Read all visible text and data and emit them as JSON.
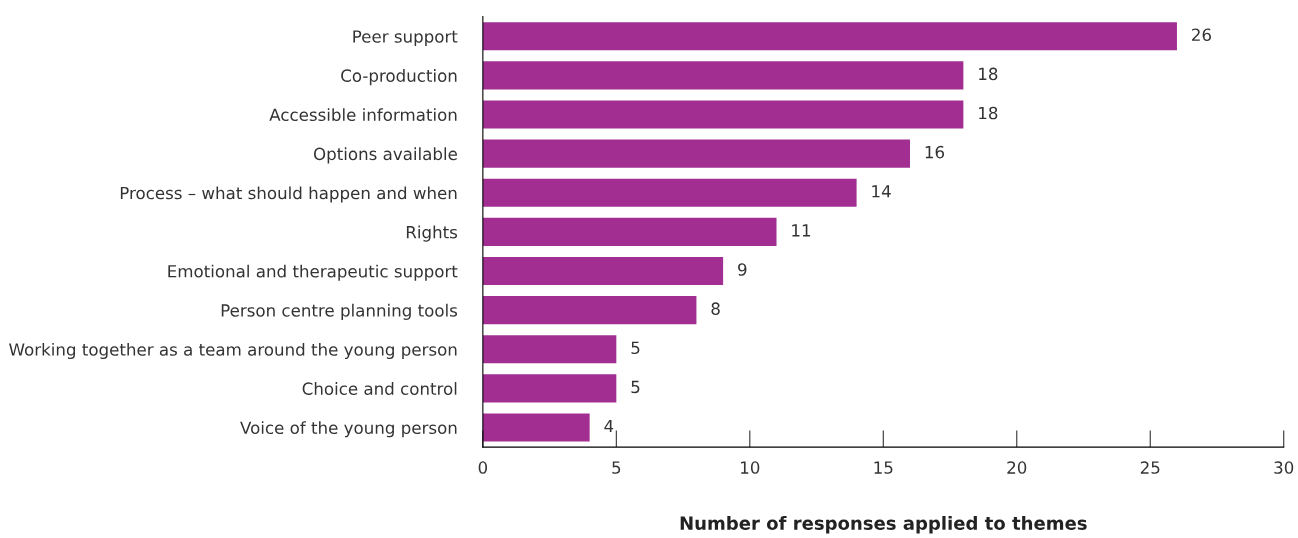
{
  "chart_data": {
    "type": "bar",
    "orientation": "horizontal",
    "xlabel": "Number of responses applied to themes",
    "categories": [
      "Peer support",
      "Co-production",
      "Accessible information",
      "Options available",
      "Process – what should happen and when",
      "Rights",
      "Emotional and therapeutic support",
      "Person centre planning tools",
      "Working together as a team around the young person",
      "Choice and control",
      "Voice of the young person"
    ],
    "values": [
      26,
      18,
      18,
      16,
      14,
      11,
      9,
      8,
      5,
      5,
      4
    ],
    "color": "#a22e92",
    "xlim": [
      0,
      30
    ],
    "xticks": [
      0,
      5,
      10,
      15,
      20,
      25,
      30
    ],
    "data_labels": true,
    "grid": false,
    "legend": false
  }
}
